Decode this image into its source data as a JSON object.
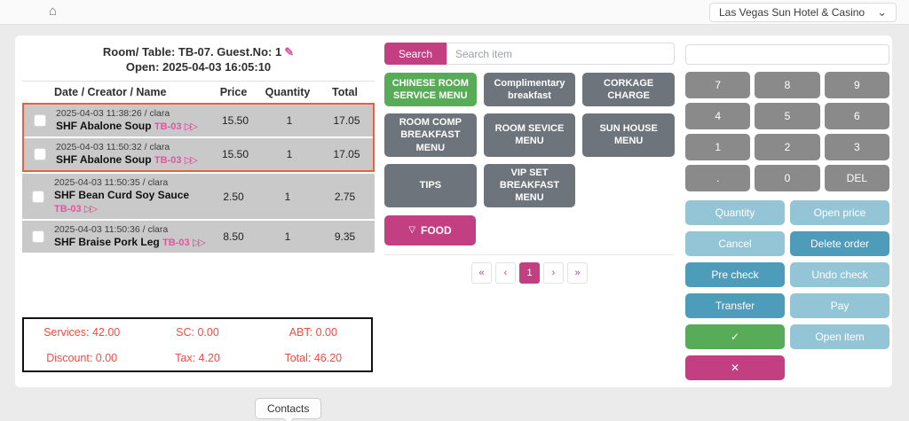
{
  "icons": {
    "home": "⌂",
    "edit": "✎",
    "chevron_down": "⌄",
    "forward": "▷▷",
    "triangle_down": "▽"
  },
  "topbar": {
    "property": "Las Vegas Sun Hotel & Casino"
  },
  "order_panel": {
    "header_line1": "Room/ Table: TB-07. Guest.No: 1",
    "header_line2": "Open: 2025-04-03 16:05:10",
    "columns": [
      "Date / Creator / Name",
      "Price",
      "Quantity",
      "Total"
    ],
    "rows": [
      {
        "datetime": "2025-04-03 11:38:26 / clara",
        "name": "SHF Abalone Soup",
        "tag": "TB-03",
        "price": "15.50",
        "quantity": "1",
        "total": "17.05"
      },
      {
        "datetime": "2025-04-03 11:50:32 / clara",
        "name": "SHF Abalone Soup",
        "tag": "TB-03",
        "price": "15.50",
        "quantity": "1",
        "total": "17.05"
      },
      {
        "datetime": "2025-04-03 11:50:35 / clara",
        "name": "SHF Bean Curd Soy Sauce",
        "tag": "TB-03",
        "price": "2.50",
        "quantity": "1",
        "total": "2.75"
      },
      {
        "datetime": "2025-04-03 11:50:36 / clara",
        "name": "SHF Braise Pork Leg",
        "tag": "TB-03",
        "price": "8.50",
        "quantity": "1",
        "total": "9.35"
      }
    ],
    "summary": {
      "services": "Services: 42.00",
      "sc": "SC: 0.00",
      "abt": "ABT: 0.00",
      "discount": "Discount: 0.00",
      "tax": "Tax: 4.20",
      "total": "Total: 46.20"
    }
  },
  "menu_panel": {
    "search_button": "Search",
    "search_placeholder": "Search item",
    "categories": [
      {
        "label": "CHINESE ROOM SERVICE MENU"
      },
      {
        "label": "Complimentary breakfast"
      },
      {
        "label": "CORKAGE CHARGE"
      },
      {
        "label": "ROOM COMP BREAKFAST MENU"
      },
      {
        "label": "ROOM SEVICE MENU"
      },
      {
        "label": "SUN HOUSE MENU"
      },
      {
        "label": "TIPS"
      },
      {
        "label": "VIP SET BREAKFAST MENU"
      }
    ],
    "food_button": "FOOD",
    "pagination": {
      "first": "«",
      "prev": "‹",
      "page": "1",
      "next": "›",
      "last": "»"
    }
  },
  "keypad": {
    "input_value": "",
    "keys": [
      "7",
      "8",
      "9",
      "4",
      "5",
      "6",
      "1",
      "2",
      "3",
      ".",
      "0",
      "DEL"
    ]
  },
  "actions": {
    "quantity": "Quantity",
    "open_price": "Open price",
    "cancel": "Cancel",
    "delete_order": "Delete order",
    "pre_check": "Pre check",
    "undo_check": "Undo check",
    "transfer": "Transfer",
    "pay": "Pay",
    "confirm": "✓",
    "open_item": "Open item",
    "close": "✕"
  },
  "footer": {
    "contacts_label": "Contacts"
  },
  "colors": {
    "accent_pink": "#c23f81",
    "accent_green": "#58ab57",
    "menu_gray": "#6d747b",
    "key_gray": "#8a8a8a",
    "action_light_blue": "#93c5d6",
    "action_dark_blue": "#4d9cba",
    "selection_orange": "#e8613c",
    "summary_red": "#f14b42",
    "row_gray": "#c9c9c9"
  }
}
